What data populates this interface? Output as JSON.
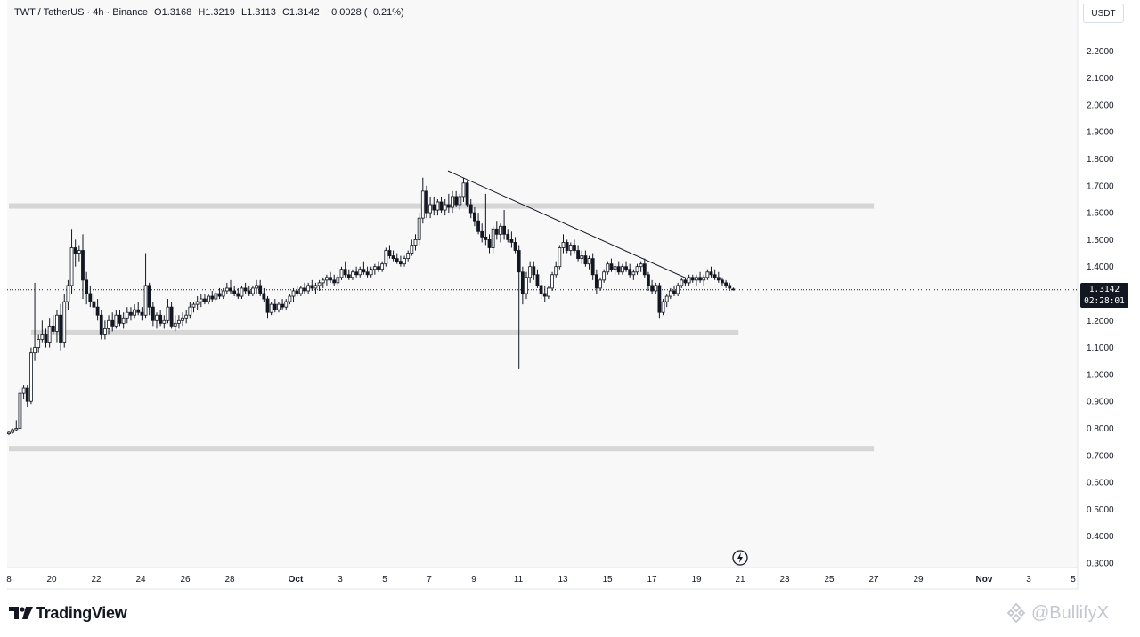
{
  "legend": {
    "symbol": "TWT / TetherUS · 4h · Binance",
    "open": "O1.3168",
    "high": "H1.3219",
    "low": "L1.3113",
    "close": "C1.3142",
    "change": "−0.0028 (−0.21%)"
  },
  "currency": "USDT",
  "last_price": {
    "value": "1.3142",
    "countdown": "02:28:01",
    "level": 1.3142
  },
  "brand": "TradingView",
  "watermark": "@BullifyX",
  "colors": {
    "bull": "#ffffff",
    "bear": "#131722",
    "outline": "#131722",
    "zone": "#d6d6d6",
    "trendline": "#131722",
    "axis_text": "#131722"
  },
  "chart_data": {
    "type": "candlestick",
    "title": "",
    "interval": "4h",
    "ylim": [
      0.3,
      2.3
    ],
    "y_ticks": [
      "2.2000",
      "2.1000",
      "2.0000",
      "1.9000",
      "1.8000",
      "1.7000",
      "1.6000",
      "1.5000",
      "1.4000",
      "1.3000",
      "1.2000",
      "1.1000",
      "1.0000",
      "0.9000",
      "0.8000",
      "0.7000",
      "0.6000",
      "0.5000",
      "0.4000",
      "0.3000"
    ],
    "x_ticks": [
      "8",
      "20",
      "22",
      "24",
      "26",
      "28",
      "Oct",
      "3",
      "5",
      "7",
      "9",
      "11",
      "13",
      "15",
      "17",
      "19",
      "21",
      "23",
      "25",
      "27",
      "29",
      "Nov",
      "3",
      "5"
    ],
    "zones": [
      {
        "from": 1.615,
        "to": 1.635,
        "start_day": 0,
        "end_day": 39
      },
      {
        "from": 1.145,
        "to": 1.165,
        "start_day": 1,
        "end_day": 32.9
      },
      {
        "from": 0.715,
        "to": 0.735,
        "start_day": 0,
        "end_day": 39
      }
    ],
    "trendline": {
      "start": {
        "day": 19.8,
        "price": 1.755
      },
      "end": {
        "day": 30.6,
        "price": 1.355
      }
    },
    "price_line": 1.3142,
    "x_start_day": 0,
    "x_end_day": 48,
    "candles": [
      [
        0,
        0.78,
        0.79,
        0.775,
        0.785
      ],
      [
        0.167,
        0.785,
        0.8,
        0.78,
        0.795
      ],
      [
        0.333,
        0.795,
        0.83,
        0.79,
        0.8
      ],
      [
        0.5,
        0.8,
        0.95,
        0.79,
        0.93
      ],
      [
        0.667,
        0.93,
        0.96,
        0.91,
        0.95
      ],
      [
        0.833,
        0.95,
        0.96,
        0.88,
        0.9
      ],
      [
        1,
        0.9,
        1.1,
        0.89,
        1.08
      ],
      [
        1.167,
        1.08,
        1.34,
        1.05,
        1.1
      ],
      [
        1.333,
        1.1,
        1.15,
        1.08,
        1.13
      ],
      [
        1.5,
        1.13,
        1.2,
        1.12,
        1.15
      ],
      [
        1.667,
        1.15,
        1.17,
        1.1,
        1.12
      ],
      [
        1.833,
        1.12,
        1.21,
        1.1,
        1.18
      ],
      [
        2,
        1.18,
        1.22,
        1.15,
        1.16
      ],
      [
        2.167,
        1.16,
        1.24,
        1.12,
        1.22
      ],
      [
        2.333,
        1.22,
        1.26,
        1.09,
        1.12
      ],
      [
        2.5,
        1.12,
        1.3,
        1.1,
        1.27
      ],
      [
        2.667,
        1.27,
        1.35,
        1.24,
        1.33
      ],
      [
        2.833,
        1.33,
        1.54,
        1.3,
        1.47
      ],
      [
        3,
        1.47,
        1.5,
        1.4,
        1.45
      ],
      [
        3.167,
        1.45,
        1.48,
        1.42,
        1.46
      ],
      [
        3.333,
        1.46,
        1.52,
        1.28,
        1.35
      ],
      [
        3.5,
        1.35,
        1.38,
        1.26,
        1.3
      ],
      [
        3.667,
        1.3,
        1.33,
        1.25,
        1.27
      ],
      [
        3.833,
        1.27,
        1.3,
        1.22,
        1.25
      ],
      [
        4,
        1.25,
        1.28,
        1.2,
        1.22
      ],
      [
        4.167,
        1.22,
        1.24,
        1.13,
        1.15
      ],
      [
        4.333,
        1.15,
        1.2,
        1.13,
        1.17
      ],
      [
        4.5,
        1.17,
        1.22,
        1.15,
        1.2
      ],
      [
        4.667,
        1.2,
        1.23,
        1.16,
        1.18
      ],
      [
        4.833,
        1.18,
        1.24,
        1.17,
        1.22
      ],
      [
        5,
        1.22,
        1.24,
        1.18,
        1.19
      ],
      [
        5.167,
        1.19,
        1.23,
        1.17,
        1.21
      ],
      [
        5.333,
        1.21,
        1.25,
        1.19,
        1.23
      ],
      [
        5.5,
        1.23,
        1.25,
        1.2,
        1.22
      ],
      [
        5.667,
        1.22,
        1.26,
        1.21,
        1.24
      ],
      [
        5.833,
        1.24,
        1.27,
        1.22,
        1.23
      ],
      [
        6,
        1.23,
        1.25,
        1.2,
        1.22
      ],
      [
        6.167,
        1.22,
        1.45,
        1.21,
        1.33
      ],
      [
        6.333,
        1.33,
        1.34,
        1.22,
        1.25
      ],
      [
        6.5,
        1.25,
        1.27,
        1.18,
        1.2
      ],
      [
        6.667,
        1.2,
        1.23,
        1.17,
        1.22
      ],
      [
        6.833,
        1.22,
        1.24,
        1.18,
        1.19
      ],
      [
        7,
        1.19,
        1.22,
        1.17,
        1.2
      ],
      [
        7.167,
        1.2,
        1.28,
        1.19,
        1.25
      ],
      [
        7.333,
        1.25,
        1.27,
        1.17,
        1.18
      ],
      [
        7.5,
        1.18,
        1.22,
        1.16,
        1.19
      ],
      [
        7.667,
        1.19,
        1.22,
        1.17,
        1.2
      ],
      [
        7.833,
        1.2,
        1.23,
        1.18,
        1.21
      ],
      [
        8,
        1.21,
        1.24,
        1.19,
        1.22
      ],
      [
        8.167,
        1.22,
        1.27,
        1.21,
        1.25
      ],
      [
        8.333,
        1.25,
        1.27,
        1.23,
        1.26
      ],
      [
        8.5,
        1.26,
        1.29,
        1.24,
        1.27
      ],
      [
        8.667,
        1.27,
        1.3,
        1.25,
        1.28
      ],
      [
        8.833,
        1.28,
        1.3,
        1.26,
        1.27
      ],
      [
        9,
        1.27,
        1.3,
        1.26,
        1.29
      ],
      [
        9.167,
        1.29,
        1.31,
        1.27,
        1.28
      ],
      [
        9.333,
        1.28,
        1.31,
        1.27,
        1.3
      ],
      [
        9.5,
        1.3,
        1.32,
        1.28,
        1.29
      ],
      [
        9.667,
        1.29,
        1.32,
        1.28,
        1.31
      ],
      [
        9.833,
        1.31,
        1.34,
        1.3,
        1.32
      ],
      [
        10,
        1.32,
        1.35,
        1.3,
        1.31
      ],
      [
        10.167,
        1.31,
        1.33,
        1.29,
        1.3
      ],
      [
        10.333,
        1.3,
        1.32,
        1.28,
        1.29
      ],
      [
        10.5,
        1.29,
        1.33,
        1.28,
        1.32
      ],
      [
        10.667,
        1.32,
        1.34,
        1.3,
        1.31
      ],
      [
        10.833,
        1.31,
        1.33,
        1.29,
        1.3
      ],
      [
        11,
        1.3,
        1.33,
        1.29,
        1.32
      ],
      [
        11.167,
        1.32,
        1.35,
        1.3,
        1.33
      ],
      [
        11.333,
        1.33,
        1.35,
        1.29,
        1.3
      ],
      [
        11.5,
        1.3,
        1.32,
        1.27,
        1.28
      ],
      [
        11.667,
        1.28,
        1.29,
        1.21,
        1.23
      ],
      [
        11.833,
        1.23,
        1.27,
        1.22,
        1.26
      ],
      [
        12,
        1.26,
        1.28,
        1.23,
        1.24
      ],
      [
        12.167,
        1.24,
        1.27,
        1.23,
        1.26
      ],
      [
        12.333,
        1.26,
        1.28,
        1.24,
        1.25
      ],
      [
        12.5,
        1.25,
        1.28,
        1.24,
        1.27
      ],
      [
        12.667,
        1.27,
        1.3,
        1.26,
        1.29
      ],
      [
        12.833,
        1.29,
        1.32,
        1.27,
        1.31
      ],
      [
        13,
        1.31,
        1.33,
        1.29,
        1.3
      ],
      [
        13.167,
        1.3,
        1.33,
        1.29,
        1.32
      ],
      [
        13.333,
        1.32,
        1.34,
        1.3,
        1.31
      ],
      [
        13.5,
        1.31,
        1.34,
        1.3,
        1.33
      ],
      [
        13.667,
        1.33,
        1.35,
        1.31,
        1.32
      ],
      [
        13.833,
        1.32,
        1.34,
        1.3,
        1.33
      ],
      [
        14,
        1.33,
        1.35,
        1.31,
        1.34
      ],
      [
        14.167,
        1.34,
        1.36,
        1.32,
        1.35
      ],
      [
        14.333,
        1.35,
        1.37,
        1.33,
        1.36
      ],
      [
        14.5,
        1.36,
        1.38,
        1.34,
        1.35
      ],
      [
        14.667,
        1.35,
        1.37,
        1.33,
        1.34
      ],
      [
        14.833,
        1.34,
        1.37,
        1.33,
        1.36
      ],
      [
        15,
        1.36,
        1.4,
        1.35,
        1.39
      ],
      [
        15.167,
        1.39,
        1.42,
        1.36,
        1.37
      ],
      [
        15.333,
        1.37,
        1.39,
        1.35,
        1.36
      ],
      [
        15.5,
        1.36,
        1.39,
        1.35,
        1.38
      ],
      [
        15.667,
        1.38,
        1.4,
        1.36,
        1.37
      ],
      [
        15.833,
        1.37,
        1.4,
        1.36,
        1.39
      ],
      [
        16,
        1.39,
        1.42,
        1.37,
        1.38
      ],
      [
        16.167,
        1.38,
        1.4,
        1.36,
        1.37
      ],
      [
        16.333,
        1.37,
        1.4,
        1.36,
        1.39
      ],
      [
        16.5,
        1.39,
        1.41,
        1.37,
        1.4
      ],
      [
        16.667,
        1.4,
        1.42,
        1.38,
        1.39
      ],
      [
        16.833,
        1.39,
        1.42,
        1.38,
        1.41
      ],
      [
        17,
        1.41,
        1.47,
        1.4,
        1.46
      ],
      [
        17.167,
        1.46,
        1.48,
        1.43,
        1.44
      ],
      [
        17.333,
        1.44,
        1.46,
        1.42,
        1.43
      ],
      [
        17.5,
        1.43,
        1.45,
        1.41,
        1.42
      ],
      [
        17.667,
        1.42,
        1.44,
        1.4,
        1.41
      ],
      [
        17.833,
        1.41,
        1.44,
        1.4,
        1.43
      ],
      [
        18,
        1.43,
        1.46,
        1.42,
        1.45
      ],
      [
        18.167,
        1.45,
        1.5,
        1.44,
        1.48
      ],
      [
        18.333,
        1.48,
        1.52,
        1.46,
        1.5
      ],
      [
        18.5,
        1.5,
        1.6,
        1.48,
        1.58
      ],
      [
        18.667,
        1.58,
        1.73,
        1.56,
        1.68
      ],
      [
        18.833,
        1.68,
        1.7,
        1.58,
        1.6
      ],
      [
        19,
        1.6,
        1.66,
        1.58,
        1.63
      ],
      [
        19.167,
        1.63,
        1.66,
        1.59,
        1.61
      ],
      [
        19.333,
        1.61,
        1.65,
        1.59,
        1.64
      ],
      [
        19.5,
        1.64,
        1.66,
        1.6,
        1.61
      ],
      [
        19.667,
        1.61,
        1.65,
        1.59,
        1.63
      ],
      [
        19.833,
        1.63,
        1.67,
        1.6,
        1.62
      ],
      [
        20,
        1.62,
        1.68,
        1.6,
        1.66
      ],
      [
        20.167,
        1.66,
        1.68,
        1.62,
        1.63
      ],
      [
        20.333,
        1.63,
        1.67,
        1.61,
        1.66
      ],
      [
        20.5,
        1.66,
        1.73,
        1.64,
        1.71
      ],
      [
        20.667,
        1.71,
        1.72,
        1.62,
        1.63
      ],
      [
        20.833,
        1.63,
        1.65,
        1.58,
        1.6
      ],
      [
        21,
        1.6,
        1.62,
        1.55,
        1.57
      ],
      [
        21.167,
        1.57,
        1.6,
        1.52,
        1.53
      ],
      [
        21.333,
        1.53,
        1.56,
        1.49,
        1.51
      ],
      [
        21.5,
        1.51,
        1.67,
        1.48,
        1.5
      ],
      [
        21.667,
        1.5,
        1.52,
        1.45,
        1.47
      ],
      [
        21.833,
        1.47,
        1.55,
        1.45,
        1.54
      ],
      [
        22,
        1.54,
        1.57,
        1.5,
        1.52
      ],
      [
        22.167,
        1.52,
        1.56,
        1.49,
        1.55
      ],
      [
        22.333,
        1.55,
        1.61,
        1.5,
        1.52
      ],
      [
        22.5,
        1.52,
        1.54,
        1.49,
        1.5
      ],
      [
        22.667,
        1.5,
        1.53,
        1.47,
        1.49
      ],
      [
        22.833,
        1.49,
        1.51,
        1.45,
        1.46
      ],
      [
        23,
        1.46,
        1.48,
        1.02,
        1.38
      ],
      [
        23.167,
        1.38,
        1.4,
        1.26,
        1.3
      ],
      [
        23.333,
        1.3,
        1.38,
        1.28,
        1.36
      ],
      [
        23.5,
        1.36,
        1.42,
        1.34,
        1.4
      ],
      [
        23.667,
        1.4,
        1.42,
        1.35,
        1.37
      ],
      [
        23.833,
        1.37,
        1.39,
        1.32,
        1.33
      ],
      [
        24,
        1.33,
        1.35,
        1.28,
        1.3
      ],
      [
        24.167,
        1.3,
        1.33,
        1.27,
        1.29
      ],
      [
        24.333,
        1.29,
        1.33,
        1.28,
        1.32
      ],
      [
        24.5,
        1.32,
        1.38,
        1.31,
        1.37
      ],
      [
        24.667,
        1.37,
        1.42,
        1.36,
        1.4
      ],
      [
        24.833,
        1.4,
        1.48,
        1.39,
        1.47
      ],
      [
        25,
        1.47,
        1.52,
        1.45,
        1.49
      ],
      [
        25.167,
        1.49,
        1.5,
        1.45,
        1.46
      ],
      [
        25.333,
        1.46,
        1.49,
        1.44,
        1.48
      ],
      [
        25.5,
        1.48,
        1.5,
        1.45,
        1.46
      ],
      [
        25.667,
        1.46,
        1.48,
        1.42,
        1.43
      ],
      [
        25.833,
        1.43,
        1.46,
        1.41,
        1.44
      ],
      [
        26,
        1.44,
        1.46,
        1.4,
        1.41
      ],
      [
        26.167,
        1.41,
        1.44,
        1.39,
        1.43
      ],
      [
        26.333,
        1.43,
        1.45,
        1.35,
        1.37
      ],
      [
        26.5,
        1.37,
        1.39,
        1.3,
        1.32
      ],
      [
        26.667,
        1.32,
        1.36,
        1.31,
        1.35
      ],
      [
        26.833,
        1.35,
        1.39,
        1.34,
        1.38
      ],
      [
        27,
        1.38,
        1.42,
        1.37,
        1.41
      ],
      [
        27.167,
        1.41,
        1.43,
        1.38,
        1.39
      ],
      [
        27.333,
        1.39,
        1.41,
        1.37,
        1.4
      ],
      [
        27.5,
        1.4,
        1.42,
        1.37,
        1.38
      ],
      [
        27.667,
        1.38,
        1.41,
        1.37,
        1.4
      ],
      [
        27.833,
        1.4,
        1.42,
        1.38,
        1.39
      ],
      [
        28,
        1.39,
        1.41,
        1.36,
        1.37
      ],
      [
        28.167,
        1.37,
        1.39,
        1.35,
        1.38
      ],
      [
        28.333,
        1.38,
        1.41,
        1.37,
        1.4
      ],
      [
        28.5,
        1.4,
        1.42,
        1.38,
        1.41
      ],
      [
        28.667,
        1.41,
        1.43,
        1.36,
        1.37
      ],
      [
        28.833,
        1.37,
        1.38,
        1.31,
        1.33
      ],
      [
        29,
        1.33,
        1.35,
        1.3,
        1.31
      ],
      [
        29.167,
        1.31,
        1.34,
        1.3,
        1.33
      ],
      [
        29.333,
        1.33,
        1.34,
        1.21,
        1.23
      ],
      [
        29.5,
        1.23,
        1.28,
        1.22,
        1.27
      ],
      [
        29.667,
        1.27,
        1.3,
        1.25,
        1.29
      ],
      [
        29.833,
        1.29,
        1.32,
        1.28,
        1.31
      ],
      [
        30,
        1.31,
        1.33,
        1.29,
        1.3
      ],
      [
        30.167,
        1.3,
        1.34,
        1.29,
        1.33
      ],
      [
        30.333,
        1.33,
        1.36,
        1.32,
        1.35
      ],
      [
        30.5,
        1.35,
        1.36,
        1.33,
        1.34
      ],
      [
        30.667,
        1.34,
        1.37,
        1.33,
        1.36
      ],
      [
        30.833,
        1.36,
        1.37,
        1.34,
        1.35
      ],
      [
        31,
        1.35,
        1.37,
        1.33,
        1.36
      ],
      [
        31.167,
        1.36,
        1.38,
        1.34,
        1.35
      ],
      [
        31.333,
        1.35,
        1.37,
        1.33,
        1.36
      ],
      [
        31.5,
        1.36,
        1.39,
        1.35,
        1.38
      ],
      [
        31.667,
        1.38,
        1.4,
        1.36,
        1.37
      ],
      [
        31.833,
        1.37,
        1.39,
        1.35,
        1.36
      ],
      [
        32,
        1.36,
        1.38,
        1.34,
        1.35
      ],
      [
        32.167,
        1.35,
        1.36,
        1.33,
        1.34
      ],
      [
        32.333,
        1.34,
        1.35,
        1.32,
        1.33
      ],
      [
        32.5,
        1.33,
        1.34,
        1.31,
        1.32
      ],
      [
        32.667,
        1.3168,
        1.3219,
        1.3113,
        1.3142
      ]
    ]
  }
}
